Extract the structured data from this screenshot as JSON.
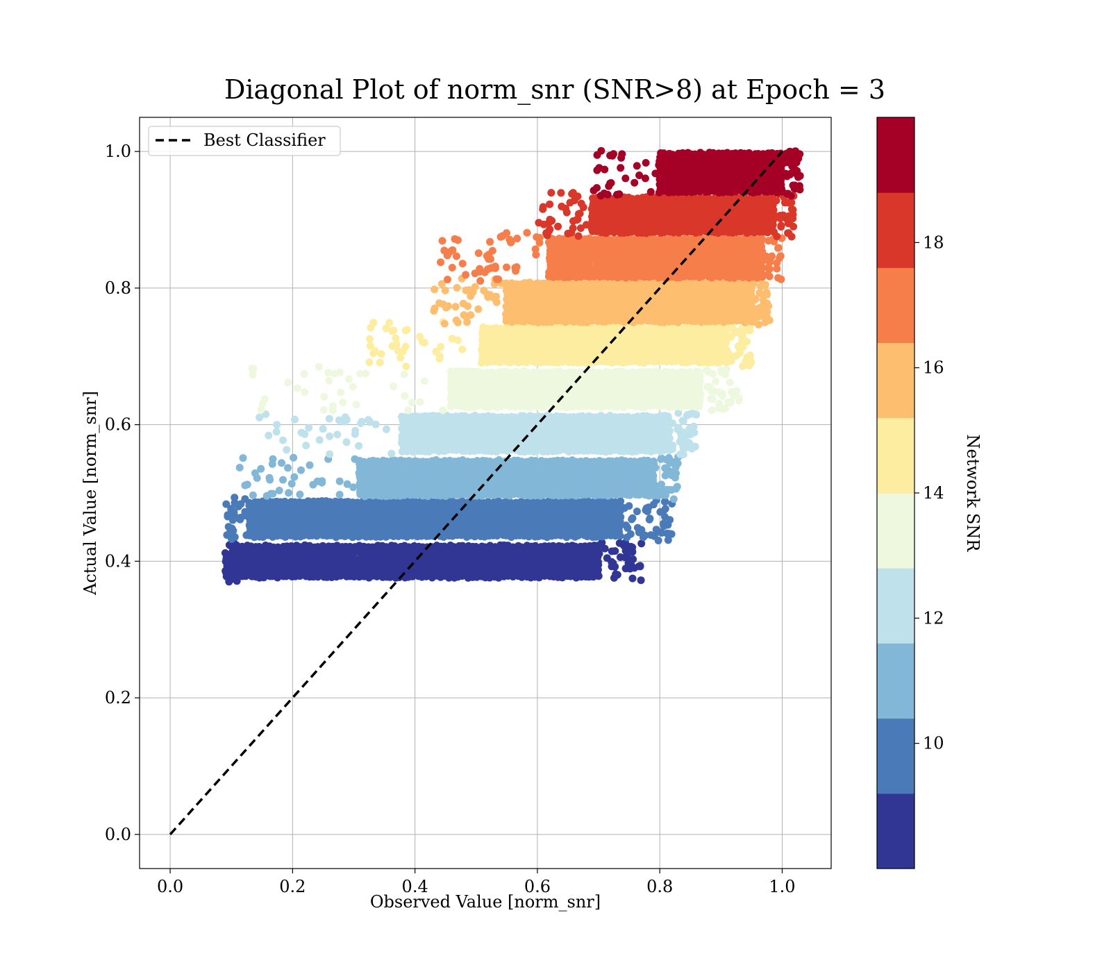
{
  "chart_data": {
    "type": "scatter",
    "title": "Diagonal Plot of norm_snr (SNR>8) at Epoch = 3",
    "xlabel": "Observed Value [norm_snr]",
    "ylabel": "Actual Value [norm_snr]",
    "xlim": [
      -0.05,
      1.08
    ],
    "ylim": [
      -0.05,
      1.05
    ],
    "grid": true,
    "xticks": [
      0.0,
      0.2,
      0.4,
      0.6,
      0.8,
      1.0
    ],
    "yticks": [
      0.0,
      0.2,
      0.4,
      0.6,
      0.8,
      1.0
    ],
    "xtick_labels": [
      "0.0",
      "0.2",
      "0.4",
      "0.6",
      "0.8",
      "1.0"
    ],
    "ytick_labels": [
      "0.0",
      "0.2",
      "0.4",
      "0.6",
      "0.8",
      "1.0"
    ],
    "legend": {
      "position": "top-left",
      "entries": [
        {
          "label": "Best Classifier",
          "style": "dashed",
          "color": "#000000"
        }
      ]
    },
    "reference_line": {
      "name": "Best Classifier",
      "x": [
        0.0,
        1.0
      ],
      "y": [
        0.0,
        1.0
      ]
    },
    "colorbar": {
      "label": "Network SNR",
      "range": [
        8,
        20
      ],
      "ticks": [
        10,
        12,
        14,
        16,
        18
      ],
      "tick_labels": [
        "10",
        "12",
        "14",
        "16",
        "18"
      ],
      "colors": [
        "#313695",
        "#4a7ab7",
        "#82b7d7",
        "#bee1ec",
        "#edf8df",
        "#fdeda1",
        "#fdbe70",
        "#f57e4b",
        "#d93729",
        "#a50026"
      ]
    },
    "bands": [
      {
        "snr_range": [
          8.0,
          9.2
        ],
        "color": "#313695",
        "y_range": [
          0.37,
          0.425
        ],
        "core_x": [
          0.11,
          0.7
        ],
        "scatter_x": [
          0.09,
          0.77
        ]
      },
      {
        "snr_range": [
          9.2,
          10.4
        ],
        "color": "#4a7ab7",
        "y_range": [
          0.43,
          0.49
        ],
        "core_x": [
          0.13,
          0.74
        ],
        "scatter_x": [
          0.09,
          0.82
        ]
      },
      {
        "snr_range": [
          10.4,
          11.6
        ],
        "color": "#82b7d7",
        "y_range": [
          0.49,
          0.55
        ],
        "core_x": [
          0.31,
          0.79
        ],
        "scatter_x": [
          0.1,
          0.83
        ]
      },
      {
        "snr_range": [
          11.6,
          12.8
        ],
        "color": "#bee1ec",
        "y_range": [
          0.555,
          0.615
        ],
        "core_x": [
          0.38,
          0.82
        ],
        "scatter_x": [
          0.12,
          0.86
        ]
      },
      {
        "snr_range": [
          12.8,
          14.0
        ],
        "color": "#edf8df",
        "y_range": [
          0.62,
          0.68
        ],
        "core_x": [
          0.46,
          0.87
        ],
        "scatter_x": [
          0.13,
          0.93
        ]
      },
      {
        "snr_range": [
          14.0,
          15.2
        ],
        "color": "#fdeda1",
        "y_range": [
          0.685,
          0.745
        ],
        "core_x": [
          0.51,
          0.91
        ],
        "scatter_x": [
          0.32,
          0.95
        ]
      },
      {
        "snr_range": [
          15.2,
          16.4
        ],
        "color": "#fdbe70",
        "y_range": [
          0.745,
          0.81
        ],
        "core_x": [
          0.55,
          0.95
        ],
        "scatter_x": [
          0.43,
          0.98
        ]
      },
      {
        "snr_range": [
          16.4,
          17.6
        ],
        "color": "#f57e4b",
        "y_range": [
          0.81,
          0.875
        ],
        "core_x": [
          0.62,
          0.97
        ],
        "scatter_x": [
          0.44,
          1.0
        ]
      },
      {
        "snr_range": [
          17.6,
          18.8
        ],
        "color": "#d93729",
        "y_range": [
          0.875,
          0.935
        ],
        "core_x": [
          0.69,
          0.99
        ],
        "scatter_x": [
          0.6,
          1.02
        ]
      },
      {
        "snr_range": [
          18.8,
          20.0
        ],
        "color": "#a50026",
        "y_range": [
          0.935,
          1.0
        ],
        "core_x": [
          0.8,
          1.0
        ],
        "scatter_x": [
          0.69,
          1.03
        ]
      }
    ]
  }
}
